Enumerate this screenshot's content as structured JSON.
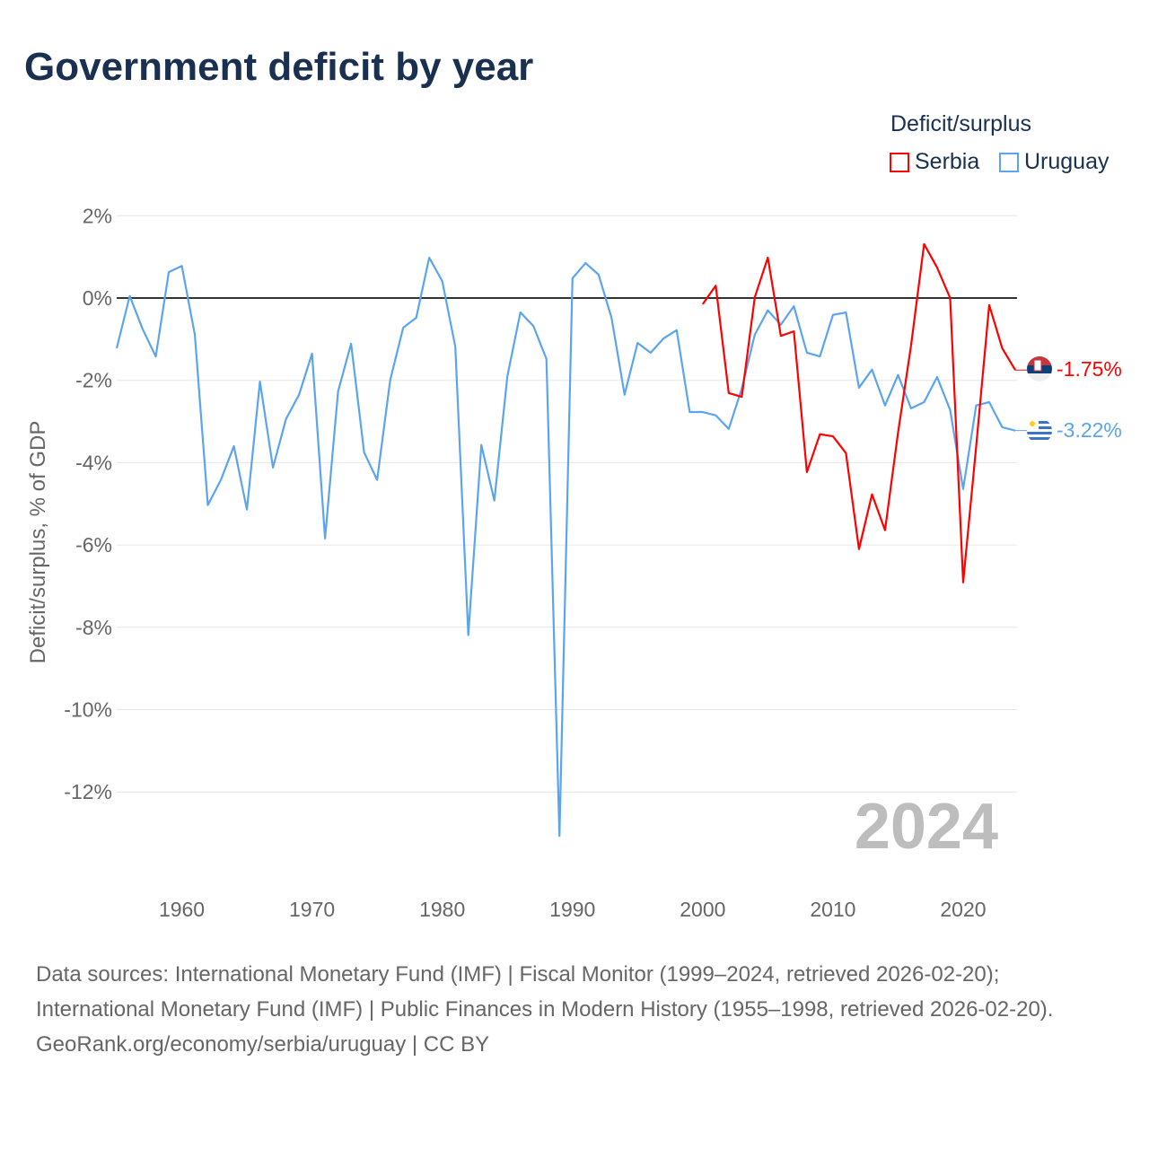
{
  "title": "Government deficit by year",
  "legend": {
    "title": "Deficit/surplus",
    "items": [
      {
        "label": "Serbia",
        "color": "#ff0000"
      },
      {
        "label": "Uruguay",
        "color": "#5ba4ee"
      }
    ]
  },
  "watermark": "2024",
  "end_labels": {
    "serbia": "-1.75%",
    "uruguay": "-3.22%"
  },
  "footer": {
    "sources": "Data sources: International Monetary Fund (IMF) | Fiscal Monitor (1999–2024, retrieved 2026-02-20); International Monetary Fund (IMF) | Public Finances in Modern History (1955–1998, retrieved 2026-02-20).",
    "credit": "GeoRank.org/economy/serbia/uruguay | CC BY"
  },
  "chart_data": {
    "type": "line",
    "title": "Government deficit by year",
    "ylabel": "Deficit/surplus, % of GDP",
    "xlabel": "",
    "xlim": [
      1955,
      2024
    ],
    "ylim": [
      -14,
      2
    ],
    "xticks": [
      1960,
      1970,
      1980,
      1990,
      2000,
      2010,
      2020
    ],
    "yticks": [
      2,
      0,
      -2,
      -4,
      -6,
      -8,
      -10,
      -12
    ],
    "ytick_labels": [
      "2%",
      "0%",
      "-2%",
      "-4%",
      "-6%",
      "-8%",
      "-10%",
      "-12%"
    ],
    "legend_position": "top-right",
    "grid": true,
    "series": [
      {
        "name": "Serbia",
        "color": "#ff0000",
        "start_year": 2000,
        "values": [
          -0.15,
          0.3,
          -2.31,
          -2.4,
          0.02,
          0.98,
          -0.92,
          -0.81,
          -4.23,
          -3.31,
          -3.36,
          -3.77,
          -6.1,
          -4.77,
          -5.64,
          -3.27,
          -1.15,
          1.31,
          0.74,
          0.0,
          -6.91,
          -3.6,
          -0.17,
          -1.22,
          -1.75
        ]
      },
      {
        "name": "Uruguay",
        "color": "#5ba4ee",
        "start_year": 1955,
        "values": [
          -1.22,
          0.05,
          -0.76,
          -1.42,
          0.63,
          0.78,
          -0.89,
          -5.03,
          -4.42,
          -3.6,
          -5.14,
          -2.03,
          -4.12,
          -2.94,
          -2.35,
          -1.35,
          -5.84,
          -2.27,
          -1.11,
          -3.75,
          -4.42,
          -2.0,
          -0.72,
          -0.48,
          0.98,
          0.41,
          -1.18,
          -8.19,
          -3.57,
          -4.92,
          -1.9,
          -0.35,
          -0.68,
          -1.48,
          -13.07,
          0.48,
          0.85,
          0.57,
          -0.48,
          -2.35,
          -1.09,
          -1.33,
          -0.98,
          -0.78,
          -2.77,
          -2.77,
          -2.85,
          -3.18,
          -2.2,
          -0.89,
          -0.3,
          -0.65,
          -0.2,
          -1.33,
          -1.42,
          -0.41,
          -0.35,
          -2.18,
          -1.74,
          -2.61,
          -1.87,
          -2.68,
          -2.53,
          -1.92,
          -2.72,
          -4.64,
          -2.61,
          -2.53,
          -3.14,
          -3.22
        ]
      }
    ]
  }
}
